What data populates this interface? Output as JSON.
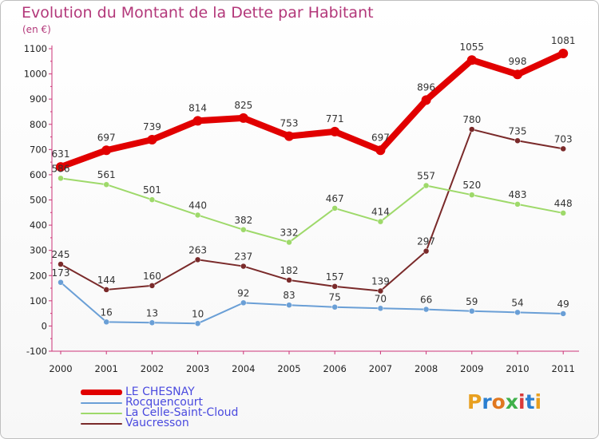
{
  "title": "Evolution du Montant de la Dette par Habitant",
  "subtitle": "(en €)",
  "logo": {
    "text": "Proxiti",
    "letters": [
      "P",
      "r",
      "o",
      "x",
      "i",
      "t",
      "i"
    ],
    "colors": [
      "#e8a020",
      "#2b7fd0",
      "#e07820",
      "#3fb04a",
      "#d93a3a",
      "#2b7fd0",
      "#e8a020"
    ]
  },
  "chart_data": {
    "type": "line",
    "x": [
      "2000",
      "2001",
      "2002",
      "2003",
      "2004",
      "2005",
      "2006",
      "2007",
      "2008",
      "2009",
      "2010",
      "2011"
    ],
    "ylim": [
      -100,
      1100
    ],
    "yticks": [
      -100,
      0,
      100,
      200,
      300,
      400,
      500,
      600,
      700,
      800,
      900,
      1000,
      1100
    ],
    "grid": false,
    "legend_position": "bottom-left",
    "series": [
      {
        "name": "LE CHESNAY",
        "color": "#e10000",
        "width": 8,
        "marker": 6,
        "values": [
          631,
          697,
          739,
          814,
          825,
          753,
          771,
          697,
          896,
          1055,
          998,
          1081
        ],
        "labels": [
          "631",
          "697",
          "739",
          "814",
          "825",
          "753",
          "771",
          "697",
          "896",
          "1055",
          "998",
          "1081"
        ]
      },
      {
        "name": "Rocquencourt",
        "color": "#6a9fd6",
        "width": 2,
        "marker": 3.5,
        "values": [
          173,
          16,
          13,
          10,
          92,
          83,
          75,
          70,
          66,
          59,
          54,
          49
        ],
        "labels": [
          "173",
          "16",
          "13",
          "10",
          "92",
          "83",
          "75",
          "70",
          "66",
          "59",
          "54",
          "49"
        ]
      },
      {
        "name": "La Celle-Saint-Cloud",
        "color": "#9ed96a",
        "width": 2,
        "marker": 3.5,
        "values": [
          586,
          561,
          501,
          440,
          382,
          332,
          467,
          414,
          557,
          520,
          483,
          448
        ],
        "labels": [
          "586",
          "561",
          "501",
          "440",
          "382",
          "332",
          "467",
          "414",
          "557",
          "520",
          "483",
          "448"
        ]
      },
      {
        "name": "Vaucresson",
        "color": "#7a2a2a",
        "width": 2,
        "marker": 3.5,
        "values": [
          245,
          144,
          160,
          263,
          237,
          182,
          157,
          139,
          297,
          780,
          735,
          703
        ],
        "labels": [
          "245",
          "144",
          "160",
          "263",
          "237",
          "182",
          "157",
          "139",
          "297",
          "780",
          "735",
          "703"
        ]
      }
    ]
  }
}
